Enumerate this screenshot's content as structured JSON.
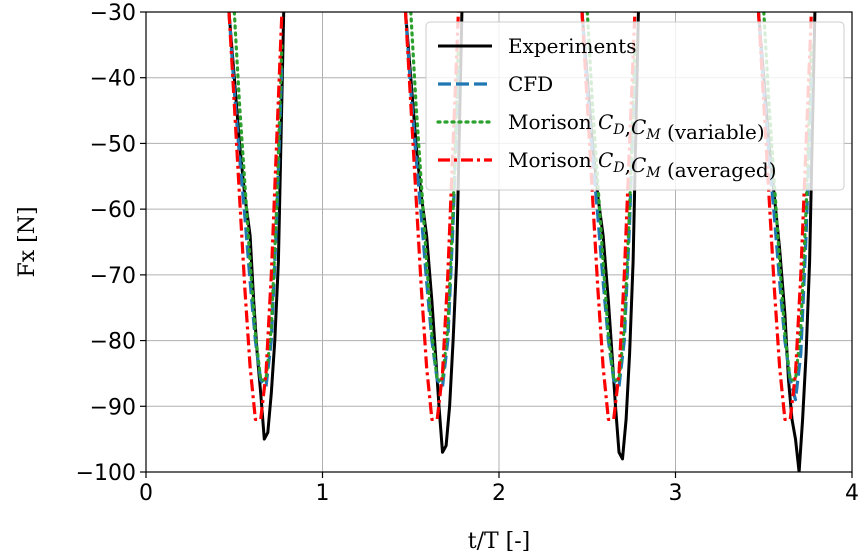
{
  "chart_data": {
    "type": "line",
    "title": "",
    "xlabel": "t/T [-]",
    "ylabel": "Fx [N]",
    "xlim": [
      0,
      4
    ],
    "ylim": [
      -100,
      -30
    ],
    "xticks": [
      "0",
      "1",
      "2",
      "3",
      "4"
    ],
    "yticks": [
      "−100",
      "−90",
      "−80",
      "−70",
      "−60",
      "−50",
      "−40",
      "−30"
    ],
    "grid": true,
    "legend_position": "top-right",
    "series": [
      {
        "name": "Experiments",
        "color": "#000000",
        "style": "solid",
        "x": [
          0.47,
          0.5,
          0.53,
          0.56,
          0.59,
          0.61,
          0.63,
          0.65,
          0.67,
          0.69,
          0.71,
          0.73,
          0.75,
          0.78,
          1.47,
          1.5,
          1.53,
          1.56,
          1.59,
          1.62,
          1.64,
          1.66,
          1.68,
          1.7,
          1.72,
          1.74,
          1.76,
          1.79,
          2.47,
          2.5,
          2.53,
          2.56,
          2.59,
          2.62,
          2.64,
          2.66,
          2.68,
          2.7,
          2.72,
          2.74,
          2.76,
          2.79,
          3.47,
          3.5,
          3.53,
          3.56,
          3.59,
          3.62,
          3.64,
          3.66,
          3.68,
          3.7,
          3.72,
          3.74,
          3.76,
          3.79
        ],
        "y": [
          -30,
          -40,
          -50,
          -58,
          -64,
          -74,
          -82,
          -88,
          -95,
          -94,
          -88,
          -80,
          -68,
          -30,
          -30,
          -40,
          -50,
          -58,
          -64,
          -74,
          -82,
          -90,
          -97,
          -96,
          -90,
          -80,
          -68,
          -30,
          -30,
          -40,
          -50,
          -58,
          -64,
          -74,
          -82,
          -90,
          -97,
          -98,
          -92,
          -82,
          -68,
          -30,
          -30,
          -40,
          -50,
          -58,
          -66,
          -76,
          -86,
          -92,
          -95,
          -100,
          -92,
          -82,
          -68,
          -30
        ]
      },
      {
        "name": "CFD",
        "color": "#1f77b4",
        "style": "dashed",
        "x": [
          0.47,
          0.5,
          0.53,
          0.56,
          0.59,
          0.62,
          0.65,
          0.68,
          0.71,
          0.74,
          0.77,
          1.47,
          1.5,
          1.53,
          1.56,
          1.59,
          1.62,
          1.65,
          1.68,
          1.71,
          1.74,
          1.77,
          2.47,
          2.5,
          2.53,
          2.56,
          2.59,
          2.62,
          2.65,
          2.68,
          2.71,
          2.74,
          2.77,
          3.47,
          3.5,
          3.53,
          3.56,
          3.59,
          3.62,
          3.65,
          3.68,
          3.71,
          3.74,
          3.77
        ],
        "y": [
          -30,
          -42,
          -52,
          -61,
          -71,
          -80,
          -86,
          -87,
          -80,
          -62,
          -38,
          -30,
          -42,
          -52,
          -61,
          -71,
          -80,
          -86,
          -87,
          -80,
          -62,
          -38,
          -30,
          -42,
          -52,
          -61,
          -71,
          -80,
          -86,
          -87,
          -80,
          -62,
          -38,
          -30,
          -42,
          -52,
          -61,
          -71,
          -80,
          -86,
          -89,
          -82,
          -64,
          -40
        ]
      },
      {
        "name": "Morison $C_D$,$C_M$ (variable)",
        "color": "#2ca02c",
        "style": "dotted",
        "x": [
          0.5,
          0.53,
          0.56,
          0.59,
          0.62,
          0.65,
          0.68,
          0.71,
          0.74,
          0.77,
          1.5,
          1.53,
          1.56,
          1.59,
          1.62,
          1.65,
          1.68,
          1.71,
          1.74,
          1.77,
          2.5,
          2.53,
          2.56,
          2.59,
          2.62,
          2.65,
          2.68,
          2.71,
          2.74,
          2.77,
          3.5,
          3.53,
          3.56,
          3.59,
          3.62,
          3.65,
          3.68,
          3.71,
          3.74,
          3.77
        ],
        "y": [
          -30,
          -44,
          -56,
          -68,
          -79,
          -86,
          -86,
          -78,
          -60,
          -35,
          -30,
          -44,
          -56,
          -68,
          -79,
          -86,
          -86,
          -78,
          -60,
          -35,
          -30,
          -44,
          -56,
          -68,
          -79,
          -86,
          -86,
          -78,
          -60,
          -35,
          -30,
          -44,
          -56,
          -68,
          -79,
          -86,
          -86,
          -78,
          -60,
          -35
        ]
      },
      {
        "name": "Morison $C_D$,$C_M$ (averaged)",
        "color": "#ff0000",
        "style": "dashdot",
        "x": [
          0.47,
          0.5,
          0.53,
          0.56,
          0.59,
          0.62,
          0.65,
          0.68,
          0.71,
          0.74,
          0.77,
          1.47,
          1.5,
          1.53,
          1.56,
          1.59,
          1.62,
          1.65,
          1.68,
          1.71,
          1.74,
          1.77,
          2.47,
          2.5,
          2.53,
          2.56,
          2.59,
          2.62,
          2.65,
          2.68,
          2.71,
          2.74,
          2.77,
          3.47,
          3.5,
          3.53,
          3.56,
          3.59,
          3.62,
          3.65,
          3.68,
          3.71,
          3.74,
          3.77
        ],
        "y": [
          -30,
          -44,
          -58,
          -72,
          -84,
          -92,
          -92,
          -85,
          -70,
          -50,
          -30,
          -30,
          -44,
          -58,
          -72,
          -84,
          -92,
          -92,
          -85,
          -70,
          -50,
          -30,
          -30,
          -44,
          -58,
          -72,
          -84,
          -92,
          -92,
          -85,
          -70,
          -50,
          -30,
          -30,
          -44,
          -58,
          -72,
          -84,
          -92,
          -92,
          -85,
          -70,
          -50,
          -30
        ]
      }
    ]
  }
}
